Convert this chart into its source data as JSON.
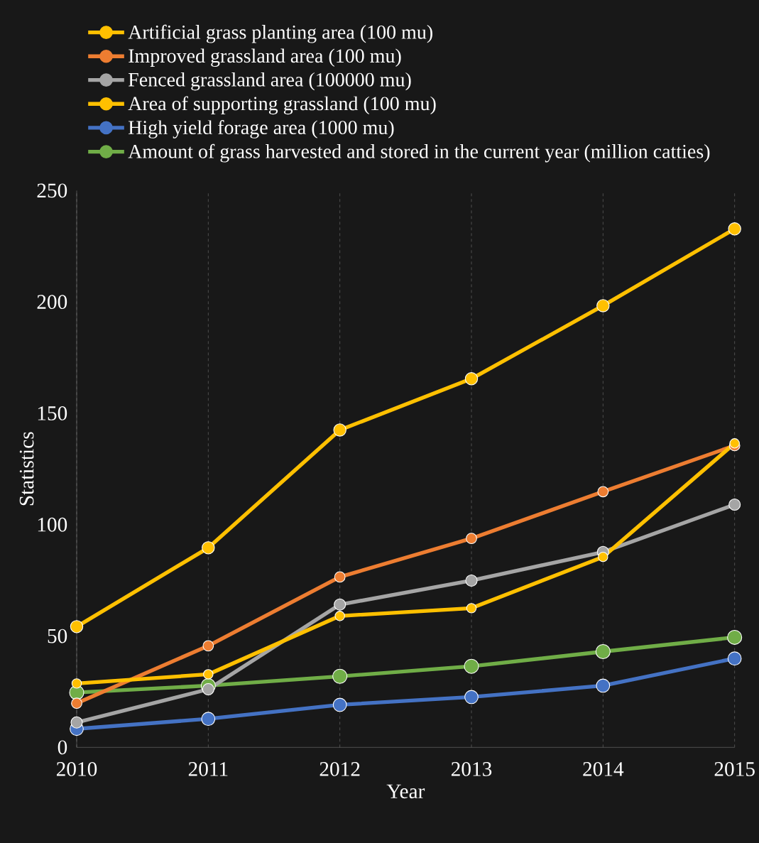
{
  "chart_data": {
    "type": "line",
    "xlabel": "Year",
    "ylabel": "Statistics",
    "x": [
      2010,
      2011,
      2012,
      2013,
      2014,
      2015
    ],
    "xlim": [
      2010,
      2015
    ],
    "xticks": [
      2010,
      2011,
      2012,
      2013,
      2014,
      2015
    ],
    "ylim": [
      0,
      250
    ],
    "yticks": [
      0,
      50,
      100,
      150,
      200,
      250
    ],
    "grid": "x",
    "legend": "top left",
    "marker": "circle",
    "line_style": "solid",
    "series": [
      {
        "name": "Artificial grass planting area (100 mu)",
        "color": "#ffc000",
        "values": [
          28.7,
          32.8,
          59,
          62.5,
          85.5,
          136.5
        ]
      },
      {
        "name": "Improved grassland area (100 mu)",
        "color": "#ed7d31",
        "values": [
          19.8,
          45.6,
          76.5,
          93.8,
          114.8,
          135.5
        ]
      },
      {
        "name": "Fenced grassland area (100000 mu)",
        "color": "#a5a5a5",
        "values": [
          11.2,
          26.1,
          64.1,
          74.9,
          87.7,
          109
        ]
      },
      {
        "name": "Area of supporting grassland (100 mu)",
        "color": "#ffc000",
        "values": [
          54.2,
          89.6,
          142.5,
          165.5,
          198.3,
          232.8
        ]
      },
      {
        "name": "High yield forage area (1000 mu)",
        "color": "#4472c4",
        "values": [
          8.3,
          12.8,
          19.1,
          22.6,
          27.7,
          39.9
        ]
      },
      {
        "name": "Amount of grass harvested and stored in the current year (million catties)",
        "color": "#70ad47",
        "values": [
          24.6,
          27.7,
          31.9,
          36.4,
          43,
          49.4
        ]
      }
    ]
  }
}
